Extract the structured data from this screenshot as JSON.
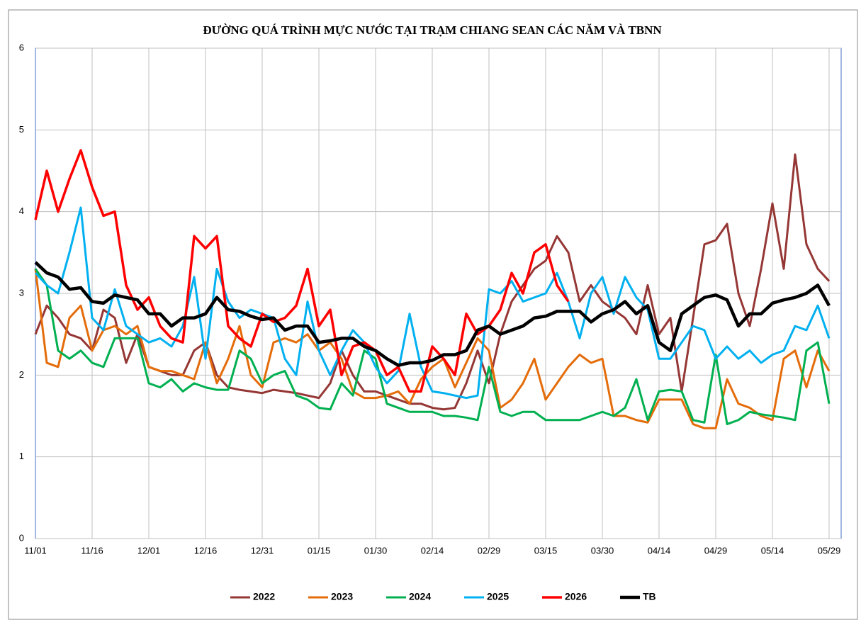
{
  "chart_data": {
    "type": "line",
    "title": "ĐƯỜNG QUÁ TRÌNH MỰC NƯỚC TẠI TRẠM CHIANG SEAN CÁC NĂM VÀ TBNN",
    "categories": [
      "11/01",
      null,
      null,
      null,
      null,
      "11/16",
      null,
      null,
      null,
      null,
      "12/01",
      null,
      null,
      null,
      null,
      "12/16",
      null,
      null,
      null,
      null,
      "12/31",
      null,
      null,
      null,
      null,
      "01/15",
      null,
      null,
      null,
      null,
      "01/30",
      null,
      null,
      null,
      null,
      "02/14",
      null,
      null,
      null,
      null,
      "02/29",
      null,
      null,
      null,
      null,
      "03/15",
      null,
      null,
      null,
      null,
      "03/30",
      null,
      null,
      null,
      null,
      "04/14",
      null,
      null,
      null,
      null,
      "04/29",
      null,
      null,
      null,
      null,
      "05/14",
      null,
      null,
      null,
      null,
      "05/29"
    ],
    "ylim": [
      0,
      6
    ],
    "yticks": [
      0,
      1,
      2,
      3,
      4,
      5,
      6
    ],
    "grid": true,
    "legend": "bottom",
    "series": [
      {
        "name": "2022",
        "color": "#953735",
        "width": 3,
        "values": [
          2.5,
          2.85,
          2.7,
          2.5,
          2.45,
          2.3,
          2.8,
          2.7,
          2.15,
          2.5,
          2.1,
          2.05,
          2.0,
          2.0,
          2.3,
          2.4,
          2.0,
          1.85,
          1.82,
          1.8,
          1.78,
          1.82,
          1.8,
          1.78,
          1.75,
          1.72,
          1.9,
          2.3,
          2.0,
          1.8,
          1.8,
          1.75,
          1.7,
          1.65,
          1.65,
          1.6,
          1.58,
          1.6,
          1.9,
          2.3,
          1.9,
          2.5,
          2.9,
          3.1,
          3.3,
          3.4,
          3.7,
          3.5,
          2.9,
          3.1,
          2.9,
          2.8,
          2.7,
          2.5,
          3.1,
          2.5,
          2.7,
          1.8,
          2.7,
          3.6,
          3.65,
          3.85,
          3.0,
          2.6,
          3.3,
          4.1,
          3.3,
          4.7,
          3.6,
          3.3,
          3.15
        ]
      },
      {
        "name": "2023",
        "color": "#e46c0a",
        "width": 3,
        "values": [
          3.3,
          2.15,
          2.1,
          2.7,
          2.85,
          2.3,
          2.55,
          2.6,
          2.5,
          2.6,
          2.1,
          2.05,
          2.05,
          2.0,
          1.95,
          2.4,
          1.9,
          2.2,
          2.6,
          2.0,
          1.85,
          2.4,
          2.45,
          2.4,
          2.5,
          2.3,
          2.4,
          2.2,
          1.8,
          1.72,
          1.72,
          1.75,
          1.8,
          1.65,
          1.95,
          2.1,
          2.2,
          1.85,
          2.15,
          2.45,
          2.3,
          1.6,
          1.7,
          1.9,
          2.2,
          1.7,
          1.9,
          2.1,
          2.25,
          2.15,
          2.2,
          1.5,
          1.5,
          1.45,
          1.42,
          1.7,
          1.7,
          1.7,
          1.4,
          1.35,
          1.35,
          1.95,
          1.65,
          1.6,
          1.5,
          1.45,
          2.2,
          2.3,
          1.85,
          2.3,
          2.05
        ]
      },
      {
        "name": "2024",
        "color": "#00b050",
        "width": 3,
        "values": [
          3.3,
          3.1,
          2.3,
          2.2,
          2.3,
          2.15,
          2.1,
          2.45,
          2.45,
          2.45,
          1.9,
          1.85,
          1.95,
          1.8,
          1.9,
          1.85,
          1.82,
          1.82,
          2.3,
          2.2,
          1.9,
          2.0,
          2.05,
          1.75,
          1.7,
          1.6,
          1.58,
          1.9,
          1.75,
          2.3,
          2.2,
          1.65,
          1.6,
          1.55,
          1.55,
          1.55,
          1.5,
          1.5,
          1.48,
          1.45,
          2.1,
          1.55,
          1.5,
          1.55,
          1.55,
          1.45,
          1.45,
          1.45,
          1.45,
          1.5,
          1.55,
          1.5,
          1.6,
          1.95,
          1.45,
          1.8,
          1.82,
          1.8,
          1.45,
          1.42,
          2.25,
          1.4,
          1.45,
          1.55,
          1.52,
          1.5,
          1.48,
          1.45,
          2.3,
          2.4,
          1.65
        ]
      },
      {
        "name": "2025",
        "color": "#00b0f0",
        "width": 3,
        "values": [
          3.25,
          3.1,
          3.0,
          3.5,
          4.05,
          2.7,
          2.55,
          3.05,
          2.6,
          2.5,
          2.4,
          2.45,
          2.35,
          2.6,
          3.2,
          2.2,
          3.3,
          2.9,
          2.7,
          2.8,
          2.75,
          2.7,
          2.2,
          2.0,
          2.9,
          2.3,
          2.0,
          2.3,
          2.55,
          2.4,
          2.1,
          1.9,
          2.05,
          2.75,
          2.1,
          1.8,
          1.78,
          1.75,
          1.72,
          1.75,
          3.05,
          3.0,
          3.15,
          2.9,
          2.95,
          3.0,
          3.25,
          2.9,
          2.45,
          3.0,
          3.2,
          2.75,
          3.2,
          2.95,
          2.8,
          2.2,
          2.2,
          2.4,
          2.6,
          2.55,
          2.2,
          2.35,
          2.2,
          2.3,
          2.15,
          2.25,
          2.3,
          2.6,
          2.55,
          2.85,
          2.45
        ]
      },
      {
        "name": "2026",
        "color": "#ff0000",
        "width": 3.5,
        "values": [
          3.9,
          4.5,
          4.0,
          4.4,
          4.75,
          4.3,
          3.95,
          4.0,
          3.1,
          2.8,
          2.95,
          2.6,
          2.45,
          2.4,
          3.7,
          3.55,
          3.7,
          2.6,
          2.45,
          2.35,
          2.75,
          2.65,
          2.7,
          2.85,
          3.3,
          2.6,
          2.8,
          2.0,
          2.35,
          2.4,
          2.3,
          2.0,
          2.1,
          1.8,
          1.8,
          2.35,
          2.2,
          2.0,
          2.75,
          2.5,
          2.6,
          2.8,
          3.25,
          3.0,
          3.5,
          3.6,
          3.1,
          2.9,
          null,
          null,
          null,
          null,
          null,
          null,
          null,
          null,
          null,
          null,
          null,
          null,
          null,
          null,
          null,
          null,
          null,
          null,
          null,
          null,
          null,
          null,
          null
        ]
      },
      {
        "name": "TB",
        "color": "#000000",
        "width": 4.5,
        "values": [
          3.38,
          3.25,
          3.2,
          3.05,
          3.07,
          2.9,
          2.88,
          2.98,
          2.95,
          2.92,
          2.75,
          2.75,
          2.6,
          2.7,
          2.7,
          2.75,
          2.95,
          2.8,
          2.78,
          2.72,
          2.68,
          2.7,
          2.55,
          2.6,
          2.6,
          2.4,
          2.42,
          2.45,
          2.45,
          2.35,
          2.3,
          2.2,
          2.12,
          2.15,
          2.15,
          2.18,
          2.25,
          2.25,
          2.3,
          2.55,
          2.6,
          2.5,
          2.55,
          2.6,
          2.7,
          2.72,
          2.78,
          2.78,
          2.78,
          2.65,
          2.75,
          2.8,
          2.9,
          2.75,
          2.85,
          2.4,
          2.3,
          2.75,
          2.85,
          2.95,
          2.98,
          2.92,
          2.6,
          2.75,
          2.75,
          2.88,
          2.92,
          2.95,
          3.0,
          3.1,
          2.85
        ]
      }
    ]
  }
}
